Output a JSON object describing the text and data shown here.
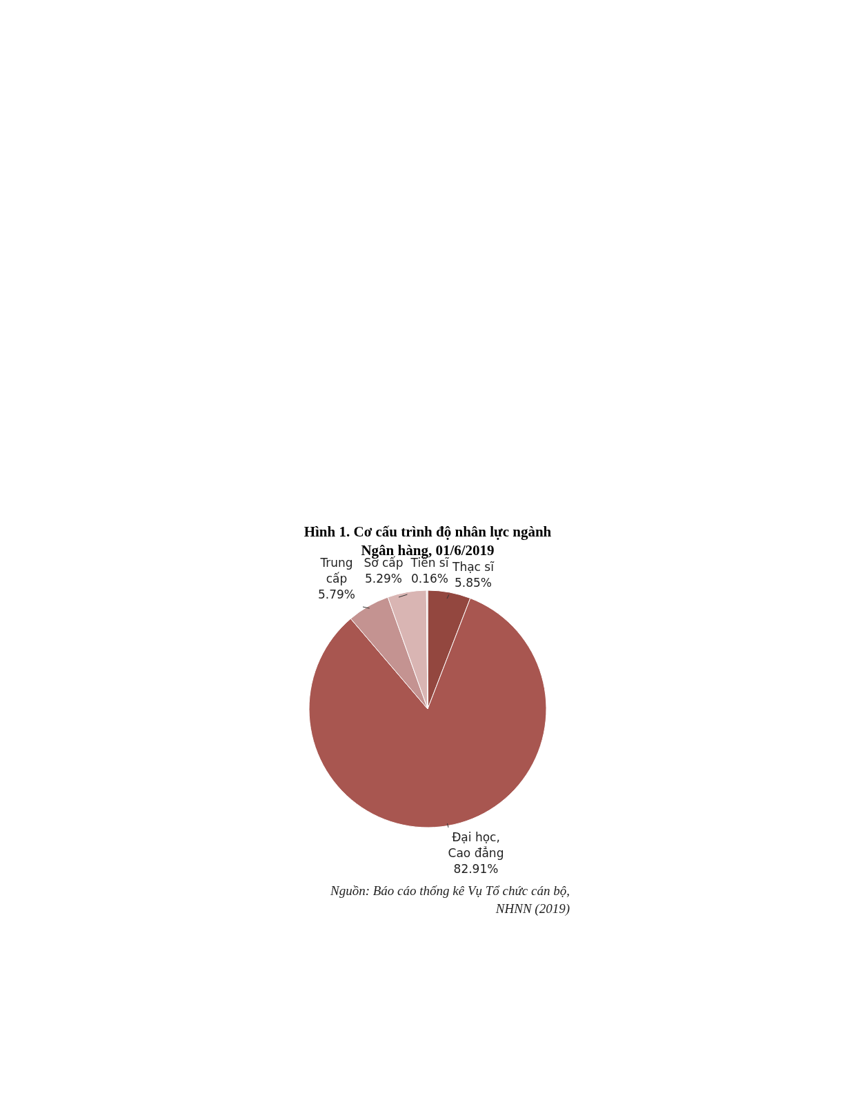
{
  "chart_data": {
    "type": "pie",
    "title": "Hình 1. Cơ cấu trình độ nhân lực ngành Ngân hàng, 01/6/2019",
    "categories": [
      "Thạc sĩ",
      "Đại học, Cao đẳng",
      "Trung cấp",
      "Sơ cấp",
      "Tiến sĩ"
    ],
    "values": [
      5.85,
      82.91,
      5.79,
      5.29,
      0.16
    ],
    "value_labels": [
      "5.85%",
      "82.91%",
      "5.79%",
      "5.29%",
      "0.16%"
    ],
    "colors": [
      "#93473f",
      "#a85650",
      "#c49391",
      "#d9b5b3",
      "#e8d0ce"
    ],
    "annotations": [
      "Nguồn: Báo cáo thống kê Vụ Tổ chức cán bộ, NHNN (2019)"
    ]
  }
}
